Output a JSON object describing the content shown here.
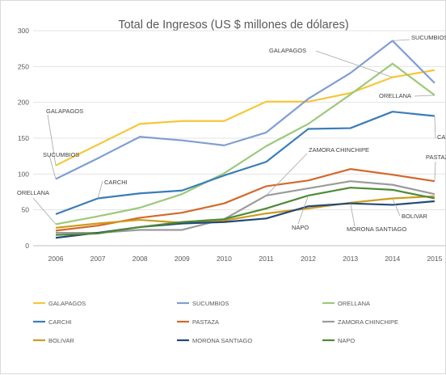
{
  "chart_data": {
    "type": "line",
    "title": "Total de Ingresos (US $ millones de dólares)",
    "x": [
      "2006",
      "2007",
      "2008",
      "2009",
      "2010",
      "2011",
      "2012",
      "2013",
      "2014",
      "2015"
    ],
    "ylim": [
      0,
      300
    ],
    "yticks": [
      0,
      50,
      100,
      150,
      200,
      250,
      300
    ],
    "grid": true,
    "legend_position": "bottom",
    "series": [
      {
        "name": "GALAPAGOS",
        "color": "#F5C73B",
        "values": [
          112,
          141,
          170,
          174,
          174,
          201,
          201,
          213,
          235,
          245
        ]
      },
      {
        "name": "SUCUMBIOS",
        "color": "#7F9ED3",
        "values": [
          93,
          122,
          152,
          147,
          140,
          158,
          205,
          241,
          286,
          227
        ]
      },
      {
        "name": "ORELLANA",
        "color": "#9CC97A",
        "values": [
          30,
          41,
          53,
          72,
          101,
          139,
          170,
          211,
          254,
          210
        ]
      },
      {
        "name": "CARCHI",
        "color": "#3A7DB8",
        "values": [
          44,
          66,
          73,
          77,
          98,
          117,
          163,
          164,
          187,
          181
        ]
      },
      {
        "name": "PASTAZA",
        "color": "#D2692B",
        "values": [
          21,
          28,
          39,
          46,
          59,
          83,
          91,
          107,
          99,
          90
        ]
      },
      {
        "name": "ZAMORA CHINCHIPE",
        "color": "#9B9B9B",
        "values": [
          18,
          18,
          22,
          22,
          37,
          70,
          80,
          90,
          85,
          72
        ]
      },
      {
        "name": "BOLIVAR",
        "color": "#CC9C1E",
        "values": [
          25,
          31,
          36,
          32,
          35,
          45,
          52,
          60,
          66,
          69
        ]
      },
      {
        "name": "MORONA SANTIAGO",
        "color": "#24497A",
        "values": [
          11,
          18,
          26,
          31,
          33,
          38,
          55,
          59,
          57,
          62
        ]
      },
      {
        "name": "NAPO",
        "color": "#4E8A34",
        "values": [
          15,
          17,
          26,
          33,
          37,
          52,
          70,
          81,
          78,
          66
        ]
      }
    ],
    "annotations": [
      {
        "text": "GALAPAGOS",
        "series": "GALAPAGOS",
        "point": "2006"
      },
      {
        "text": "SUCUMBIOS",
        "series": "SUCUMBIOS",
        "point": "2006"
      },
      {
        "text": "CARCHI",
        "series": "CARCHI",
        "point": "2007"
      },
      {
        "text": "ORELLANA",
        "series": "ORELLANA",
        "point": "2006"
      },
      {
        "text": "GALAPAGOS",
        "series": "GALAPAGOS",
        "point": "2014"
      },
      {
        "text": "SUCUMBIOS",
        "series": "SUCUMBIOS",
        "point": "2014"
      },
      {
        "text": "ORELLANA",
        "series": "ORELLANA",
        "point": "2015"
      },
      {
        "text": "CARCHI",
        "series": "CARCHI",
        "point": "2015"
      },
      {
        "text": "PASTAZA",
        "series": "PASTAZA",
        "point": "2015"
      },
      {
        "text": "ZAMORA CHINCHIPE",
        "series": "ZAMORA CHINCHIPE",
        "point": "2011"
      },
      {
        "text": "BOLIVAR",
        "series": "BOLIVAR",
        "point": "2014"
      },
      {
        "text": "NAPO",
        "series": "NAPO",
        "point": "2012"
      },
      {
        "text": "MORONA SANTIAGO",
        "series": "MORONA SANTIAGO",
        "point": "2013"
      }
    ]
  }
}
